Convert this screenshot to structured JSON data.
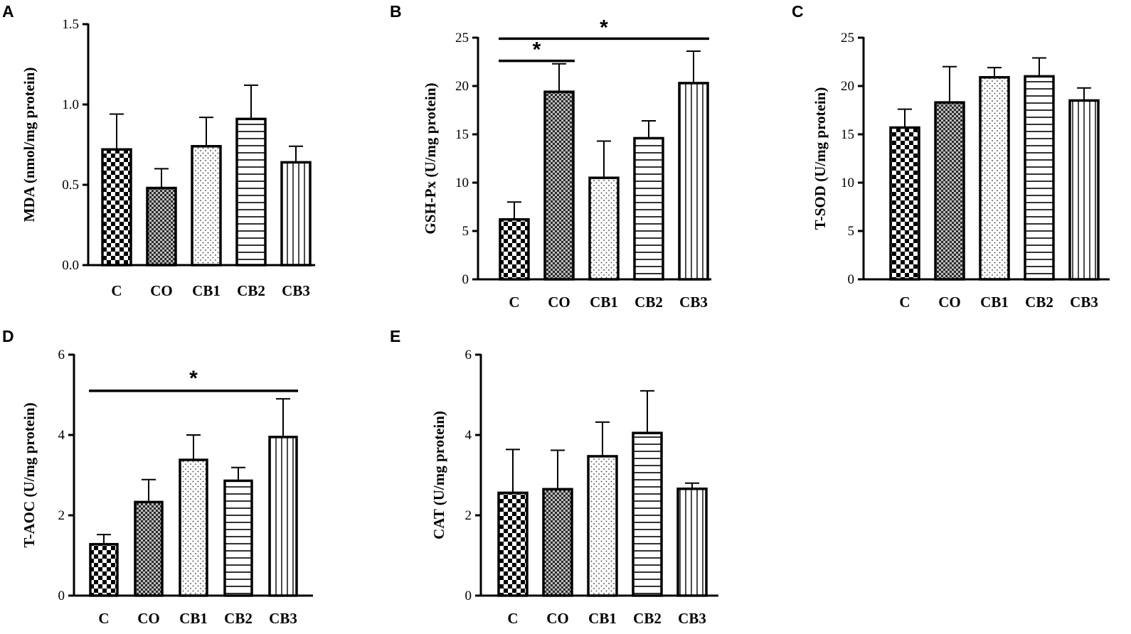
{
  "chart_data": [
    {
      "panel": "A",
      "type": "bar",
      "categories": [
        "C",
        "CO",
        "CB1",
        "CB2",
        "CB3"
      ],
      "series": [
        {
          "name": "MDA",
          "values": [
            0.72,
            0.48,
            0.74,
            0.91,
            0.64
          ],
          "errors": [
            0.22,
            0.12,
            0.18,
            0.21,
            0.1
          ]
        }
      ],
      "ylabel": "MDA (nmol/mg protein)",
      "ylim": [
        0,
        1.5
      ],
      "yticks": [
        0,
        0.5,
        1.0,
        1.5
      ],
      "ytick_labels": [
        "0.0",
        "0.5",
        "1.0",
        "1.5"
      ],
      "significance": []
    },
    {
      "panel": "B",
      "type": "bar",
      "categories": [
        "C",
        "CO",
        "CB1",
        "CB2",
        "CB3"
      ],
      "series": [
        {
          "name": "GSH-Px",
          "values": [
            6.2,
            19.4,
            10.5,
            14.6,
            20.3
          ],
          "errors": [
            1.8,
            2.9,
            3.8,
            1.8,
            3.3
          ]
        }
      ],
      "ylabel": "GSH-Px (U/mg protein)",
      "ylim": [
        0,
        25
      ],
      "yticks": [
        0,
        5,
        10,
        15,
        20,
        25
      ],
      "ytick_labels": [
        "0",
        "5",
        "10",
        "15",
        "20",
        "25"
      ],
      "significance": [
        {
          "from": 0,
          "to": 4,
          "y": 24.9,
          "label": "*"
        },
        {
          "from": 0,
          "to": 1,
          "y": 22.6,
          "label": "*"
        }
      ]
    },
    {
      "panel": "C",
      "type": "bar",
      "categories": [
        "C",
        "CO",
        "CB1",
        "CB2",
        "CB3"
      ],
      "series": [
        {
          "name": "T-SOD",
          "values": [
            15.7,
            18.3,
            20.9,
            21.0,
            18.5
          ],
          "errors": [
            1.9,
            3.7,
            1.0,
            1.9,
            1.3
          ]
        }
      ],
      "ylabel": "T-SOD (U/mg protein)",
      "ylim": [
        0,
        25
      ],
      "yticks": [
        0,
        5,
        10,
        15,
        20,
        25
      ],
      "ytick_labels": [
        "0",
        "5",
        "10",
        "15",
        "20",
        "25"
      ],
      "significance": []
    },
    {
      "panel": "D",
      "type": "bar",
      "categories": [
        "C",
        "CO",
        "CB1",
        "CB2",
        "CB3"
      ],
      "series": [
        {
          "name": "T-AOC",
          "values": [
            1.28,
            2.33,
            3.38,
            2.86,
            3.95
          ],
          "errors": [
            0.24,
            0.56,
            0.62,
            0.33,
            0.95
          ]
        }
      ],
      "ylabel": "T-AOC (U/mg protein)",
      "ylim": [
        0,
        6
      ],
      "yticks": [
        0,
        2,
        4,
        6
      ],
      "ytick_labels": [
        "0",
        "2",
        "4",
        "6"
      ],
      "significance": [
        {
          "from": 0,
          "to": 4,
          "y": 5.1,
          "label": "*"
        }
      ]
    },
    {
      "panel": "E",
      "type": "bar",
      "categories": [
        "C",
        "CO",
        "CB1",
        "CB2",
        "CB3"
      ],
      "series": [
        {
          "name": "CAT",
          "values": [
            2.56,
            2.65,
            3.47,
            4.05,
            2.66
          ],
          "errors": [
            1.08,
            0.97,
            0.85,
            1.05,
            0.14
          ]
        }
      ],
      "ylabel": "CAT (U/mg protein)",
      "ylim": [
        0,
        6
      ],
      "yticks": [
        0,
        2,
        4,
        6
      ],
      "ytick_labels": [
        "0",
        "2",
        "4",
        "6"
      ],
      "significance": []
    }
  ],
  "style": {
    "bar_fill_patterns": [
      "checker-large",
      "checker-fine",
      "dots",
      "horizontal-lines",
      "vertical-lines"
    ],
    "ink_color": "#000000",
    "background_color": "#ffffff"
  }
}
